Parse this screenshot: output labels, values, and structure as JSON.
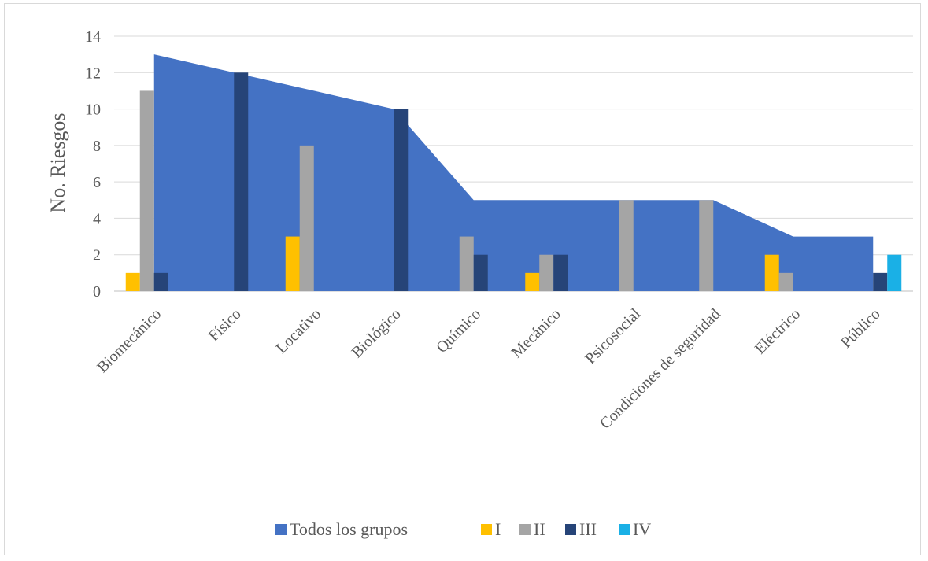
{
  "chart_data": {
    "type": "bar",
    "title": "",
    "xlabel": "",
    "ylabel": "No. Riesgos",
    "ylim": [
      0,
      14
    ],
    "yticks": [
      0,
      2,
      4,
      6,
      8,
      10,
      12,
      14
    ],
    "grid": true,
    "legend_position": "bottom",
    "categories": [
      "Biomecánico",
      "Físico",
      "Locativo",
      "Biológico",
      "Químico",
      "Mecánico",
      "Psicosocial",
      "Condiciones de seguridad",
      "Eléctrico",
      "Público"
    ],
    "area_series": {
      "name": "Todos los grupos",
      "type": "area",
      "color": "#4472c4",
      "values": [
        13,
        12,
        11,
        10,
        5,
        5,
        5,
        5,
        3,
        3
      ]
    },
    "series": [
      {
        "name": "I",
        "color": "#ffc000",
        "values": [
          1,
          0,
          3,
          0,
          0,
          1,
          0,
          0,
          2,
          0
        ]
      },
      {
        "name": "II",
        "color": "#a5a5a5",
        "values": [
          11,
          0,
          8,
          0,
          3,
          2,
          5,
          5,
          1,
          0
        ]
      },
      {
        "name": "III",
        "color": "#264478",
        "values": [
          1,
          12,
          0,
          10,
          2,
          2,
          0,
          0,
          0,
          1
        ]
      },
      {
        "name": "IV",
        "color": "#1ab0e6",
        "values": [
          0,
          0,
          0,
          0,
          0,
          0,
          0,
          0,
          0,
          2
        ]
      }
    ]
  }
}
